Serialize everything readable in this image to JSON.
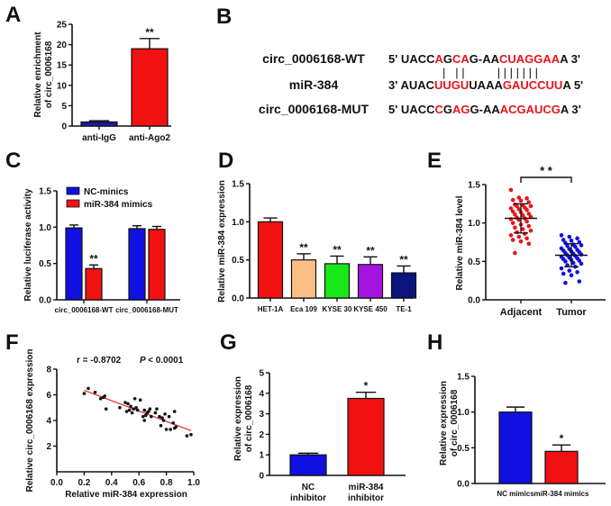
{
  "panels": {
    "A": "A",
    "B": "B",
    "C": "C",
    "D": "D",
    "E": "E",
    "F": "F",
    "G": "G",
    "H": "H"
  },
  "sequences": {
    "rows": [
      {
        "name": "circ_0006168-WT",
        "parts": [
          {
            "t": "5' UACC",
            "red": false
          },
          {
            "t": "A",
            "red": true
          },
          {
            "t": "G",
            "red": false
          },
          {
            "t": "CA",
            "red": true
          },
          {
            "t": "G-AA",
            "red": false
          },
          {
            "t": "CUAGGAA",
            "red": true
          },
          {
            "t": "A  3'",
            "red": false
          }
        ]
      },
      {
        "name": "miR-384",
        "parts": [
          {
            "t": "3' AUAC",
            "red": false
          },
          {
            "t": "UUGU",
            "red": true
          },
          {
            "t": "UAAA",
            "red": false
          },
          {
            "t": "GAUCCUU",
            "red": true
          },
          {
            "t": "A 5'",
            "red": false
          }
        ]
      },
      {
        "name": "circ_0006168-MUT",
        "parts": [
          {
            "t": "5' UACC",
            "red": false
          },
          {
            "t": "C",
            "red": true
          },
          {
            "t": "G",
            "red": false
          },
          {
            "t": "AG",
            "red": true
          },
          {
            "t": "G-AA",
            "red": false
          },
          {
            "t": "ACGAUCG",
            "red": true
          },
          {
            "t": "A  3'",
            "red": false
          }
        ]
      }
    ],
    "pairing_marks": "|   | |          | | | | | | |"
  },
  "chart_data": [
    {
      "panel": "A",
      "type": "bar",
      "categories": [
        "anti-IgG",
        "anti-Ago2"
      ],
      "values": [
        1.0,
        19.0
      ],
      "errors": [
        0.3,
        2.5
      ],
      "colors": [
        "#1a1aa8",
        "#f21111"
      ],
      "significance": [
        "",
        "**"
      ],
      "ylabel": [
        "Relative enrichment",
        "of circ_0006168"
      ],
      "ylim": [
        0,
        25
      ],
      "yticks": [
        0,
        5,
        10,
        15,
        20,
        25
      ]
    },
    {
      "panel": "C",
      "type": "bar",
      "categories": [
        "circ_0006168-WT",
        "circ_0006168-MUT"
      ],
      "series": [
        {
          "name": "NC-minics",
          "color": "#1010e0",
          "values": [
            0.99,
            0.98
          ],
          "errors": [
            0.04,
            0.04
          ]
        },
        {
          "name": "miR-384 mimics",
          "color": "#f21111",
          "values": [
            0.43,
            0.97
          ],
          "errors": [
            0.05,
            0.04
          ]
        }
      ],
      "significance": [
        [
          "",
          "**"
        ],
        [
          "",
          ""
        ]
      ],
      "ylabel": "Relative luciferase activity",
      "ylim": [
        0,
        1.5
      ],
      "yticks": [
        "0.0",
        "0.5",
        "1.0",
        "1.5"
      ],
      "legend": "top-left"
    },
    {
      "panel": "D",
      "type": "bar",
      "categories": [
        "HET-1A",
        "Eca 109",
        "KYSE 30",
        "KYSE 450",
        "TE-1"
      ],
      "values": [
        1.0,
        0.5,
        0.45,
        0.44,
        0.33
      ],
      "errors": [
        0.05,
        0.08,
        0.1,
        0.1,
        0.09
      ],
      "colors": [
        "#f21111",
        "#fbbf86",
        "#18e818",
        "#a414e0",
        "#0c1480"
      ],
      "significance": [
        "",
        "**",
        "**",
        "**",
        "**"
      ],
      "ylabel": "Relative miR-384 expression",
      "ylim": [
        0,
        1.5
      ],
      "yticks": [
        "0.0",
        "0.5",
        "1.0",
        "1.5"
      ]
    },
    {
      "panel": "E",
      "type": "scatter",
      "categories": [
        "Adjacent",
        "Tumor"
      ],
      "groups": [
        {
          "name": "Adjacent",
          "color": "#e8141b",
          "mean": 1.06,
          "sd": 0.19,
          "values": [
            1.43,
            1.33,
            1.32,
            1.3,
            1.29,
            1.27,
            1.24,
            1.23,
            1.22,
            1.22,
            1.2,
            1.19,
            1.18,
            1.17,
            1.15,
            1.14,
            1.12,
            1.11,
            1.1,
            1.08,
            1.07,
            1.06,
            1.05,
            1.04,
            1.02,
            1.0,
            0.98,
            0.96,
            0.94,
            0.92,
            0.9,
            0.88,
            0.86,
            0.84,
            0.82,
            0.8,
            0.78,
            0.76,
            0.73,
            0.61
          ]
        },
        {
          "name": "Tumor",
          "color": "#1010e0",
          "mean": 0.58,
          "sd": 0.15,
          "values": [
            0.84,
            0.82,
            0.8,
            0.78,
            0.77,
            0.75,
            0.74,
            0.72,
            0.71,
            0.7,
            0.69,
            0.67,
            0.66,
            0.65,
            0.64,
            0.63,
            0.62,
            0.61,
            0.6,
            0.59,
            0.58,
            0.57,
            0.56,
            0.55,
            0.54,
            0.53,
            0.52,
            0.51,
            0.5,
            0.48,
            0.47,
            0.45,
            0.43,
            0.41,
            0.38,
            0.36,
            0.34,
            0.32,
            0.24,
            0.22
          ]
        }
      ],
      "significance": "* *",
      "ylabel": "Relative miR-384 level",
      "ylim": [
        0,
        1.5
      ],
      "yticks": [
        "0.0",
        "0.5",
        "1.0",
        "1.5"
      ]
    },
    {
      "panel": "F",
      "type": "scatter",
      "annotation_r": "r = -0.8702",
      "annotation_p_label": "P",
      "annotation_p_value": "< 0.0001",
      "points": [
        [
          0.2,
          6.1
        ],
        [
          0.23,
          6.5
        ],
        [
          0.28,
          6.2
        ],
        [
          0.32,
          5.7
        ],
        [
          0.34,
          5.8
        ],
        [
          0.35,
          5.9
        ],
        [
          0.36,
          4.9
        ],
        [
          0.46,
          5.0
        ],
        [
          0.5,
          5.4
        ],
        [
          0.51,
          4.7
        ],
        [
          0.52,
          5.3
        ],
        [
          0.53,
          4.8
        ],
        [
          0.54,
          5.1
        ],
        [
          0.55,
          4.6
        ],
        [
          0.56,
          4.9
        ],
        [
          0.57,
          5.7
        ],
        [
          0.58,
          5.0
        ],
        [
          0.59,
          4.8
        ],
        [
          0.61,
          5.6
        ],
        [
          0.63,
          4.3
        ],
        [
          0.64,
          4.0
        ],
        [
          0.64,
          4.8
        ],
        [
          0.65,
          4.4
        ],
        [
          0.66,
          4.6
        ],
        [
          0.67,
          4.7
        ],
        [
          0.68,
          4.9
        ],
        [
          0.69,
          4.3
        ],
        [
          0.72,
          4.6
        ],
        [
          0.73,
          4.9
        ],
        [
          0.75,
          4.3
        ],
        [
          0.76,
          3.6
        ],
        [
          0.77,
          4.2
        ],
        [
          0.78,
          4.0
        ],
        [
          0.79,
          4.5
        ],
        [
          0.8,
          3.3
        ],
        [
          0.82,
          4.3
        ],
        [
          0.83,
          3.3
        ],
        [
          0.85,
          3.8
        ],
        [
          0.86,
          4.7
        ],
        [
          0.86,
          3.4
        ],
        [
          0.87,
          3.5
        ],
        [
          0.95,
          2.8
        ],
        [
          0.98,
          2.9
        ]
      ],
      "fit_line": {
        "x": [
          0.2,
          0.98
        ],
        "y": [
          6.35,
          3.2
        ],
        "color": "#e23b3b"
      },
      "xlabel": "Relative miR-384 expression",
      "ylabel": "Relative circ_0006168 expression",
      "xlim": [
        0,
        1.0
      ],
      "ylim": [
        0,
        8
      ],
      "xticks": [
        "0.0",
        "0.2",
        "0.4",
        "0.6",
        "0.8",
        "1.0"
      ],
      "yticks": [
        "2",
        "4",
        "6",
        "8"
      ]
    },
    {
      "panel": "G",
      "type": "bar",
      "categories": [
        [
          "NC",
          "inhibitor"
        ],
        [
          "miR-384",
          "inhibitor"
        ]
      ],
      "values": [
        1.0,
        3.75
      ],
      "errors": [
        0.08,
        0.3
      ],
      "colors": [
        "#1010e0",
        "#f21111"
      ],
      "significance": [
        "",
        "*"
      ],
      "ylabel": [
        "Relative expression",
        "of circ_0006168"
      ],
      "ylim": [
        0,
        5
      ],
      "yticks": [
        "0",
        "1",
        "2",
        "3",
        "4",
        "5"
      ]
    },
    {
      "panel": "H",
      "type": "bar",
      "categories": [
        "NC mimics",
        "miR-384 mimics"
      ],
      "values": [
        1.0,
        0.45
      ],
      "errors": [
        0.07,
        0.09
      ],
      "colors": [
        "#1010e0",
        "#f21111"
      ],
      "significance": [
        "",
        "*"
      ],
      "ylabel": [
        "Relative expression",
        "of circ_0006168"
      ],
      "ylim": [
        0,
        1.5
      ],
      "yticks": [
        "0.0",
        "0.5",
        "1.0",
        "1.5"
      ]
    }
  ]
}
